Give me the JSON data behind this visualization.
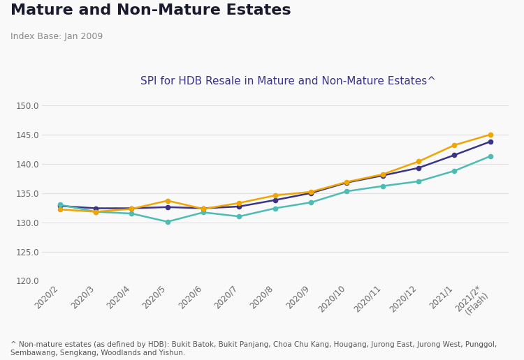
{
  "title": "Mature and Non-Mature Estates",
  "subtitle_index": "Index Base: Jan 2009",
  "chart_title": "SPI for HDB Resale in Mature and Non-Mature Estates^",
  "x_labels": [
    "2020/2",
    "2020/3",
    "2020/4",
    "2020/5",
    "2020/6",
    "2020/7",
    "2020/8",
    "2020/9",
    "2020/10",
    "2020/11",
    "2020/12",
    "2021/1",
    "2021/2*\n(Flash)"
  ],
  "overall": [
    132.8,
    132.4,
    132.4,
    132.6,
    132.4,
    132.7,
    133.8,
    135.0,
    136.8,
    138.0,
    139.3,
    141.5,
    143.8
  ],
  "mature": [
    133.0,
    131.8,
    131.5,
    130.1,
    131.7,
    131.0,
    132.4,
    133.4,
    135.3,
    136.2,
    137.0,
    138.8,
    141.3
  ],
  "non_mature": [
    132.2,
    131.8,
    132.3,
    133.7,
    132.3,
    133.3,
    134.6,
    135.2,
    136.9,
    138.2,
    140.4,
    143.2,
    145.0
  ],
  "overall_color": "#3b3486",
  "mature_color": "#4dbcb4",
  "non_mature_color": "#f0a500",
  "ylim": [
    120.0,
    152.0
  ],
  "yticks": [
    120.0,
    125.0,
    130.0,
    135.0,
    140.0,
    145.0,
    150.0
  ],
  "footnote": "^ Non-mature estates (as defined by HDB): Bukit Batok, Bukit Panjang, Choa Chu Kang, Hougang, Jurong East, Jurong West, Punggol,\nSembawang, Sengkang, Woodlands and Yishun.",
  "bg_color": "#f9f9f9",
  "title_fontsize": 16,
  "subtitle_fontsize": 9,
  "chart_title_fontsize": 11,
  "tick_fontsize": 8.5,
  "legend_fontsize": 9,
  "footnote_fontsize": 7.5
}
